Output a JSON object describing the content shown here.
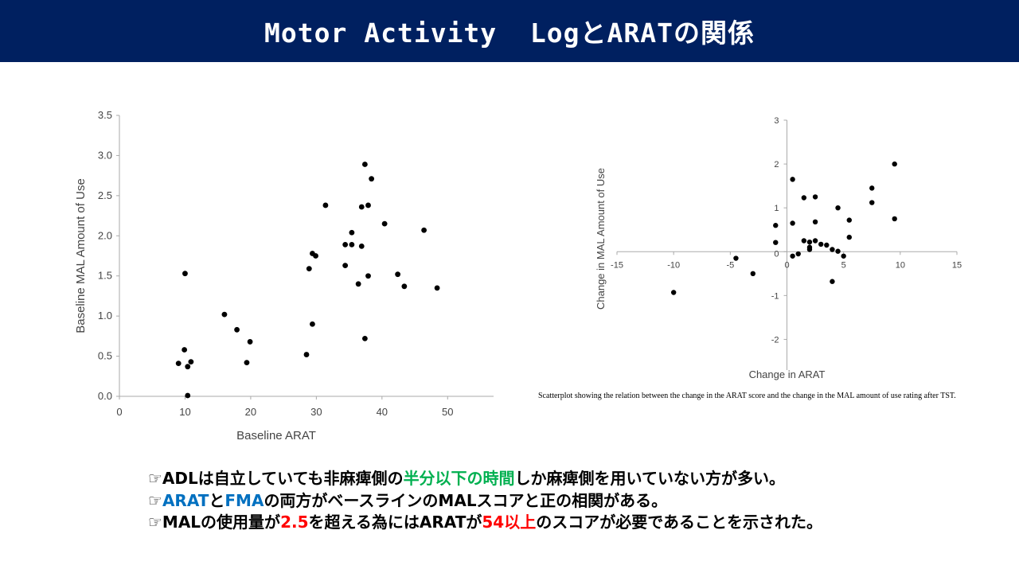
{
  "title": "Motor Activity  LogとARATの関係",
  "chart_data": [
    {
      "type": "scatter",
      "xlabel": "Baseline ARAT",
      "ylabel": "Baseline MAL Amount of Use",
      "xlim": [
        0,
        57
      ],
      "ylim": [
        0,
        3.5
      ],
      "x_ticks": [
        "0",
        "10",
        "20",
        "30",
        "40",
        "50"
      ],
      "y_ticks": [
        "0.0",
        "0.5",
        "1.0",
        "1.5",
        "2.0",
        "2.5",
        "3.0",
        "3.5"
      ],
      "grid": false,
      "points": [
        {
          "x": 9,
          "y": 0.41
        },
        {
          "x": 9.9,
          "y": 0.58
        },
        {
          "x": 10,
          "y": 1.53
        },
        {
          "x": 10.4,
          "y": 0.37
        },
        {
          "x": 10.9,
          "y": 0.43
        },
        {
          "x": 10.4,
          "y": 0.01
        },
        {
          "x": 16,
          "y": 1.02
        },
        {
          "x": 17.9,
          "y": 0.83
        },
        {
          "x": 19.4,
          "y": 0.42
        },
        {
          "x": 19.9,
          "y": 0.68
        },
        {
          "x": 28.5,
          "y": 0.52
        },
        {
          "x": 28.9,
          "y": 1.59
        },
        {
          "x": 29.4,
          "y": 1.78
        },
        {
          "x": 29.4,
          "y": 0.9
        },
        {
          "x": 29.9,
          "y": 1.75
        },
        {
          "x": 31.4,
          "y": 2.38
        },
        {
          "x": 34.4,
          "y": 1.89
        },
        {
          "x": 34.4,
          "y": 1.63
        },
        {
          "x": 35.4,
          "y": 1.89
        },
        {
          "x": 35.4,
          "y": 2.04
        },
        {
          "x": 36.4,
          "y": 1.4
        },
        {
          "x": 36.9,
          "y": 2.36
        },
        {
          "x": 36.9,
          "y": 1.87
        },
        {
          "x": 37.4,
          "y": 2.89
        },
        {
          "x": 37.4,
          "y": 0.72
        },
        {
          "x": 37.9,
          "y": 2.38
        },
        {
          "x": 37.9,
          "y": 1.5
        },
        {
          "x": 38.4,
          "y": 2.71
        },
        {
          "x": 40.4,
          "y": 2.15
        },
        {
          "x": 42.4,
          "y": 1.52
        },
        {
          "x": 43.4,
          "y": 1.37
        },
        {
          "x": 46.4,
          "y": 2.07
        },
        {
          "x": 48.4,
          "y": 1.35
        }
      ]
    },
    {
      "type": "scatter",
      "xlabel": "Change in ARAT",
      "ylabel": "Change in MAL Amount of Use",
      "xlim": [
        -15,
        15
      ],
      "ylim": [
        -2.7,
        3
      ],
      "x_ticks": [
        "-15",
        "-10",
        "-5",
        "0",
        "5",
        "10",
        "15"
      ],
      "y_ticks": [
        "3",
        "2",
        "1",
        "0",
        "-1",
        "-2"
      ],
      "grid": false,
      "points": [
        {
          "x": -10,
          "y": -0.93
        },
        {
          "x": -4.5,
          "y": -0.15
        },
        {
          "x": -3,
          "y": -0.5
        },
        {
          "x": -1,
          "y": 0.6
        },
        {
          "x": -1,
          "y": 0.21
        },
        {
          "x": 0.5,
          "y": 1.65
        },
        {
          "x": 0.5,
          "y": 0.65
        },
        {
          "x": 0.5,
          "y": -0.1
        },
        {
          "x": 1,
          "y": -0.05
        },
        {
          "x": 1.5,
          "y": 1.23
        },
        {
          "x": 1.5,
          "y": 0.25
        },
        {
          "x": 2,
          "y": 0.22
        },
        {
          "x": 2,
          "y": 0.1
        },
        {
          "x": 2,
          "y": 0.05
        },
        {
          "x": 2.5,
          "y": 1.25
        },
        {
          "x": 2.5,
          "y": 0.68
        },
        {
          "x": 2.5,
          "y": 0.25
        },
        {
          "x": 3,
          "y": 0.17
        },
        {
          "x": 3.5,
          "y": 0.15
        },
        {
          "x": 4,
          "y": 0.05
        },
        {
          "x": 4,
          "y": -0.68
        },
        {
          "x": 4.5,
          "y": 1.0
        },
        {
          "x": 4.5,
          "y": 0.01
        },
        {
          "x": 5,
          "y": -0.1
        },
        {
          "x": 5.5,
          "y": 0.72
        },
        {
          "x": 5.5,
          "y": 0.33
        },
        {
          "x": 7.5,
          "y": 1.45
        },
        {
          "x": 7.5,
          "y": 1.12
        },
        {
          "x": 9.5,
          "y": 2.0
        },
        {
          "x": 9.5,
          "y": 0.75
        }
      ]
    }
  ],
  "caption": "Scatterplot showing the relation between the change in the ARAT score and the change in the MAL amount of use rating after TST.",
  "bullets": [
    {
      "segments": [
        {
          "text": "☞ADLは自立していても非麻痺側の",
          "color": ""
        },
        {
          "text": "半分以下の時間",
          "color": "#00b050"
        },
        {
          "text": "しか麻痺側を用いていない方が多い。",
          "color": ""
        }
      ]
    },
    {
      "segments": [
        {
          "text": "☞",
          "color": ""
        },
        {
          "text": "ARAT",
          "color": "#0070c0"
        },
        {
          "text": "と",
          "color": ""
        },
        {
          "text": "FMA",
          "color": "#0070c0"
        },
        {
          "text": "の両方がベースラインのMALスコアと正の相関がある。",
          "color": ""
        }
      ]
    },
    {
      "segments": [
        {
          "text": "☞MALの使用量が",
          "color": ""
        },
        {
          "text": "2.5",
          "color": "#ff0000"
        },
        {
          "text": "を超える為にはARATが",
          "color": ""
        },
        {
          "text": "54以上",
          "color": "#ff0000"
        },
        {
          "text": "のスコアが必要であることを示された。",
          "color": ""
        }
      ]
    }
  ]
}
